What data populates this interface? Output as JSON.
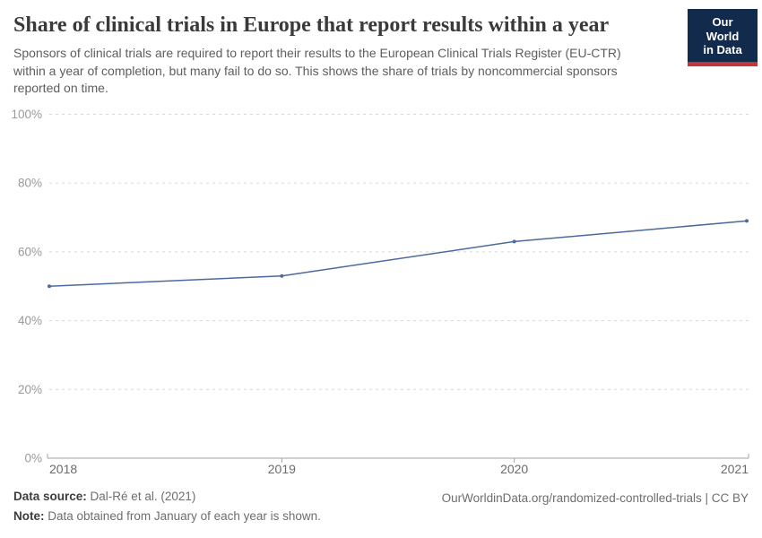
{
  "header": {
    "title": "Share of clinical trials in Europe that report results within a year",
    "subtitle_lines": [
      "Sponsors of clinical trials are required to report their results to the European Clinical Trials Register (EU-CTR)",
      "within a year of completion, but many fail to do so. This shows the share of trials by noncommercial sponsors",
      "reported on time."
    ],
    "logo_line1": "Our World",
    "logo_line2": "in Data",
    "logo_bg_color": "#122b4d",
    "logo_stripe_color": "#c0373b"
  },
  "chart_data": {
    "type": "line",
    "title": "Share of clinical trials in Europe that report results within a year",
    "x": [
      2018,
      2019,
      2020,
      2021
    ],
    "x_tick_labels": [
      "2018",
      "2019",
      "2020",
      "2021"
    ],
    "series": [
      {
        "name": "Share of trials by noncommercial sponsors reported on time",
        "values": [
          50,
          53,
          63,
          69
        ]
      }
    ],
    "ylim": [
      0,
      100
    ],
    "yticks": [
      0,
      20,
      40,
      60,
      80,
      100
    ],
    "y_tick_labels": [
      "0%",
      "20%",
      "40%",
      "60%",
      "80%",
      "100%"
    ],
    "grid": true,
    "legend": false,
    "line_color": "#4c6a9c",
    "gridline_color": "#d8d8d8",
    "axis_line_color": "#a1a1a1",
    "y_label_color": "#9a9a9a",
    "x_label_color": "#6b6b6b"
  },
  "footer": {
    "source_label": "Data source:",
    "source_value": "Dal-Ré et al. (2021)",
    "note_label": "Note:",
    "note_value": "Data obtained from January of each year is shown.",
    "attribution": "OurWorldinData.org/randomized-controlled-trials | CC BY"
  }
}
